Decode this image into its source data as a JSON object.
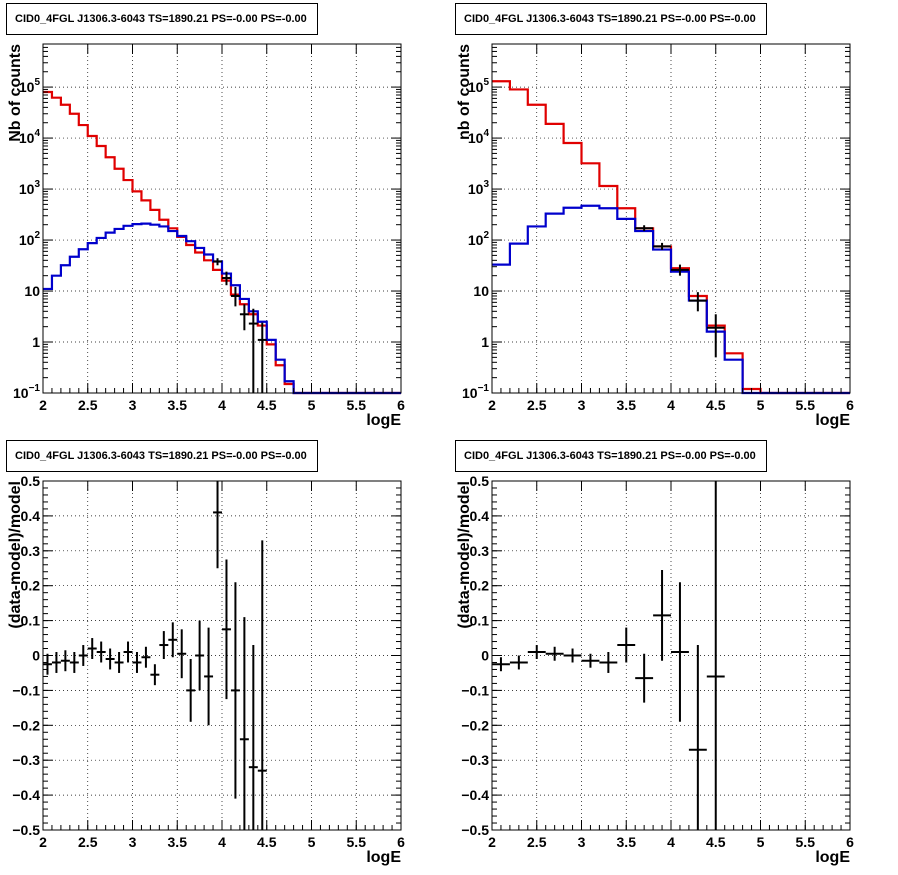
{
  "chart_data": [
    {
      "id": "top-left",
      "type": "histogram",
      "title": "CID0_4FGL J1306.3-6043 TS=1890.21 PS=-0.00 PS=-0.00",
      "xlabel": "logE",
      "ylabel": "Nb of counts",
      "xlim": [
        2,
        6
      ],
      "ylim": [
        0.1,
        700000
      ],
      "yscale": "log",
      "grid": true,
      "xticks": [
        "2",
        "2.5",
        "3",
        "3.5",
        "4",
        "4.5",
        "5",
        "5.5",
        "6"
      ],
      "yticks": [
        {
          "v": 0.1,
          "base": "10",
          "exp": "−1"
        },
        {
          "v": 1,
          "label": "1"
        },
        {
          "v": 10,
          "label": "10"
        },
        {
          "v": 100,
          "base": "10",
          "exp": "2"
        },
        {
          "v": 1000,
          "base": "10",
          "exp": "3"
        },
        {
          "v": 10000,
          "base": "10",
          "exp": "4"
        },
        {
          "v": 100000,
          "base": "10",
          "exp": "5"
        }
      ],
      "bin_edges": [
        2.0,
        2.1,
        2.2,
        2.3,
        2.4,
        2.5,
        2.6,
        2.7,
        2.8,
        2.9,
        3.0,
        3.1,
        3.2,
        3.3,
        3.4,
        3.5,
        3.6,
        3.7,
        3.8,
        3.9,
        4.0,
        4.1,
        4.2,
        4.3,
        4.4,
        4.5,
        4.6,
        4.7,
        4.8,
        4.9,
        5.0,
        5.1,
        5.2,
        5.3,
        5.4,
        5.5,
        5.6,
        5.7,
        5.8,
        5.9,
        6.0
      ],
      "series": [
        {
          "color": "#e00000",
          "values": [
            80000,
            62000,
            45000,
            30000,
            18000,
            11000,
            7000,
            4200,
            2500,
            1500,
            900,
            600,
            390,
            250,
            170,
            115,
            80,
            57,
            40,
            26,
            16,
            8.5,
            5.5,
            3.5,
            2.1,
            0.9,
            0.35,
            0.15,
            0.1,
            0.1,
            0.1,
            0.1,
            0.1,
            0.1,
            0.1,
            0.1,
            0.1,
            0.1,
            0.1,
            0.1
          ]
        },
        {
          "color": "#0000cc",
          "values": [
            11,
            20,
            32,
            47,
            66,
            87,
            110,
            140,
            165,
            190,
            205,
            210,
            200,
            185,
            150,
            120,
            95,
            70,
            52,
            38,
            22,
            13,
            7,
            4,
            2.5,
            1.1,
            0.45,
            0.17,
            0.1,
            0.1,
            0.1,
            0.1,
            0.1,
            0.1,
            0.1,
            0.1,
            0.1,
            0.1,
            0.1,
            0.1
          ]
        }
      ],
      "points": [
        {
          "x": 3.95,
          "y": 38,
          "lo": 32,
          "hi": 44
        },
        {
          "x": 4.05,
          "y": 18,
          "lo": 13,
          "hi": 24
        },
        {
          "x": 4.15,
          "y": 8,
          "lo": 5,
          "hi": 12
        },
        {
          "x": 4.25,
          "y": 3.5,
          "lo": 1.7,
          "hi": 5.5
        },
        {
          "x": 4.35,
          "y": 2.3,
          "lo": 0.1,
          "hi": 4.5
        },
        {
          "x": 4.45,
          "y": 1.1,
          "lo": 0.1,
          "hi": 2.4
        }
      ]
    },
    {
      "id": "top-right",
      "type": "histogram",
      "title": "CID0_4FGL J1306.3-6043 TS=1890.21 PS=-0.00 PS=-0.00",
      "xlabel": "logE",
      "ylabel": "nb of counts",
      "xlim": [
        2,
        6
      ],
      "ylim": [
        0.1,
        700000
      ],
      "yscale": "log",
      "grid": true,
      "xticks": [
        "2",
        "2.5",
        "3",
        "3.5",
        "4",
        "4.5",
        "5",
        "5.5",
        "6"
      ],
      "yticks": [
        {
          "v": 0.1,
          "base": "10",
          "exp": "−1"
        },
        {
          "v": 1,
          "label": "1"
        },
        {
          "v": 10,
          "label": "10"
        },
        {
          "v": 100,
          "base": "10",
          "exp": "2"
        },
        {
          "v": 1000,
          "base": "10",
          "exp": "3"
        },
        {
          "v": 10000,
          "base": "10",
          "exp": "4"
        },
        {
          "v": 100000,
          "base": "10",
          "exp": "5"
        }
      ],
      "bin_edges": [
        2.0,
        2.2,
        2.4,
        2.6,
        2.8,
        3.0,
        3.2,
        3.4,
        3.6,
        3.8,
        4.0,
        4.2,
        4.4,
        4.6,
        4.8,
        5.0,
        5.2,
        5.4,
        5.6,
        5.8,
        6.0
      ],
      "series": [
        {
          "color": "#e00000",
          "values": [
            130000,
            90000,
            45000,
            19000,
            8000,
            3200,
            1150,
            420,
            170,
            75,
            28,
            8,
            2.1,
            0.6,
            0.12,
            0.1,
            0.1,
            0.1,
            0.1,
            0.1
          ]
        },
        {
          "color": "#0000cc",
          "values": [
            33,
            85,
            185,
            330,
            430,
            470,
            420,
            260,
            150,
            65,
            24,
            6.5,
            1.6,
            0.45,
            0.1,
            0.1,
            0.1,
            0.1,
            0.1,
            0.1
          ]
        }
      ],
      "points": [
        {
          "x": 3.7,
          "y": 170,
          "lo": 150,
          "hi": 195
        },
        {
          "x": 3.9,
          "y": 75,
          "lo": 64,
          "hi": 88
        },
        {
          "x": 4.1,
          "y": 26,
          "lo": 20,
          "hi": 33
        },
        {
          "x": 4.3,
          "y": 6.5,
          "lo": 4,
          "hi": 9.5
        },
        {
          "x": 4.5,
          "y": 1.9,
          "lo": 0.5,
          "hi": 3.5
        }
      ]
    },
    {
      "id": "bottom-left",
      "type": "scatter",
      "title": "CID0_4FGL J1306.3-6043 TS=1890.21 PS=-0.00 PS=-0.00",
      "xlabel": "logE",
      "ylabel": "(data-model)/model",
      "xlim": [
        2,
        6
      ],
      "ylim": [
        -0.5,
        0.5
      ],
      "yscale": "linear",
      "grid": true,
      "xticks": [
        "2",
        "2.5",
        "3",
        "3.5",
        "4",
        "4.5",
        "5",
        "5.5",
        "6"
      ],
      "yticks": [
        {
          "v": -0.5,
          "label": "−0.5"
        },
        {
          "v": -0.4,
          "label": "−0.4"
        },
        {
          "v": -0.3,
          "label": "−0.3"
        },
        {
          "v": -0.2,
          "label": "−0.2"
        },
        {
          "v": -0.1,
          "label": "−0.1"
        },
        {
          "v": 0,
          "label": "0"
        },
        {
          "v": 0.1,
          "label": "0.1"
        },
        {
          "v": 0.2,
          "label": "0.2"
        },
        {
          "v": 0.3,
          "label": "0.3"
        },
        {
          "v": 0.4,
          "label": "0.4"
        },
        {
          "v": 0.5,
          "label": "0.5"
        }
      ],
      "points": [
        {
          "x": 2.05,
          "y": -0.025,
          "err": 0.03
        },
        {
          "x": 2.15,
          "y": -0.02,
          "err": 0.03
        },
        {
          "x": 2.25,
          "y": -0.015,
          "err": 0.03
        },
        {
          "x": 2.35,
          "y": -0.02,
          "err": 0.03
        },
        {
          "x": 2.45,
          "y": 0.0,
          "err": 0.03
        },
        {
          "x": 2.55,
          "y": 0.02,
          "err": 0.03
        },
        {
          "x": 2.65,
          "y": 0.01,
          "err": 0.03
        },
        {
          "x": 2.75,
          "y": -0.01,
          "err": 0.03
        },
        {
          "x": 2.85,
          "y": -0.02,
          "err": 0.03
        },
        {
          "x": 2.95,
          "y": 0.01,
          "err": 0.03
        },
        {
          "x": 3.05,
          "y": -0.02,
          "err": 0.03
        },
        {
          "x": 3.15,
          "y": -0.005,
          "err": 0.03
        },
        {
          "x": 3.25,
          "y": -0.055,
          "err": 0.03
        },
        {
          "x": 3.35,
          "y": 0.03,
          "err": 0.04
        },
        {
          "x": 3.45,
          "y": 0.045,
          "err": 0.05
        },
        {
          "x": 3.55,
          "y": 0.005,
          "err": 0.07
        },
        {
          "x": 3.65,
          "y": -0.1,
          "err": 0.09
        },
        {
          "x": 3.75,
          "y": 0.0,
          "err": 0.1
        },
        {
          "x": 3.85,
          "y": -0.06,
          "err": 0.14
        },
        {
          "x": 3.95,
          "y": 0.41,
          "err": 0.16
        },
        {
          "x": 4.05,
          "y": 0.075,
          "err": 0.2
        },
        {
          "x": 4.15,
          "y": -0.1,
          "err": 0.31
        },
        {
          "x": 4.25,
          "y": -0.24,
          "err": 0.35
        },
        {
          "x": 4.35,
          "y": -0.32,
          "err": 0.35
        },
        {
          "x": 4.45,
          "y": -0.33,
          "err": 0.66
        }
      ]
    },
    {
      "id": "bottom-right",
      "type": "scatter",
      "title": "CID0_4FGL J1306.3-6043 TS=1890.21 PS=-0.00 PS=-0.00",
      "xlabel": "logE",
      "ylabel": "(data-model)/model",
      "xlim": [
        2,
        6
      ],
      "ylim": [
        -0.5,
        0.5
      ],
      "yscale": "linear",
      "grid": true,
      "xticks": [
        "2",
        "2.5",
        "3",
        "3.5",
        "4",
        "4.5",
        "5",
        "5.5",
        "6"
      ],
      "yticks": [
        {
          "v": -0.5,
          "label": "−0.5"
        },
        {
          "v": -0.4,
          "label": "−0.4"
        },
        {
          "v": -0.3,
          "label": "−0.3"
        },
        {
          "v": -0.2,
          "label": "−0.2"
        },
        {
          "v": -0.1,
          "label": "−0.1"
        },
        {
          "v": 0,
          "label": "0"
        },
        {
          "v": 0.1,
          "label": "0.1"
        },
        {
          "v": 0.2,
          "label": "0.2"
        },
        {
          "v": 0.3,
          "label": "0.3"
        },
        {
          "v": 0.4,
          "label": "0.4"
        },
        {
          "v": 0.5,
          "label": "0.5"
        }
      ],
      "points": [
        {
          "x": 2.1,
          "y": -0.025,
          "err": 0.02
        },
        {
          "x": 2.3,
          "y": -0.02,
          "err": 0.02
        },
        {
          "x": 2.5,
          "y": 0.01,
          "err": 0.02
        },
        {
          "x": 2.7,
          "y": 0.005,
          "err": 0.02
        },
        {
          "x": 2.9,
          "y": 0.0,
          "err": 0.02
        },
        {
          "x": 3.1,
          "y": -0.015,
          "err": 0.02
        },
        {
          "x": 3.3,
          "y": -0.02,
          "err": 0.03
        },
        {
          "x": 3.5,
          "y": 0.03,
          "err": 0.05
        },
        {
          "x": 3.7,
          "y": -0.065,
          "err": 0.07
        },
        {
          "x": 3.9,
          "y": 0.115,
          "err": 0.13
        },
        {
          "x": 4.1,
          "y": 0.01,
          "err": 0.2
        },
        {
          "x": 4.3,
          "y": -0.27,
          "err": 0.3
        },
        {
          "x": 4.5,
          "y": -0.06,
          "err": 0.56
        }
      ]
    }
  ]
}
